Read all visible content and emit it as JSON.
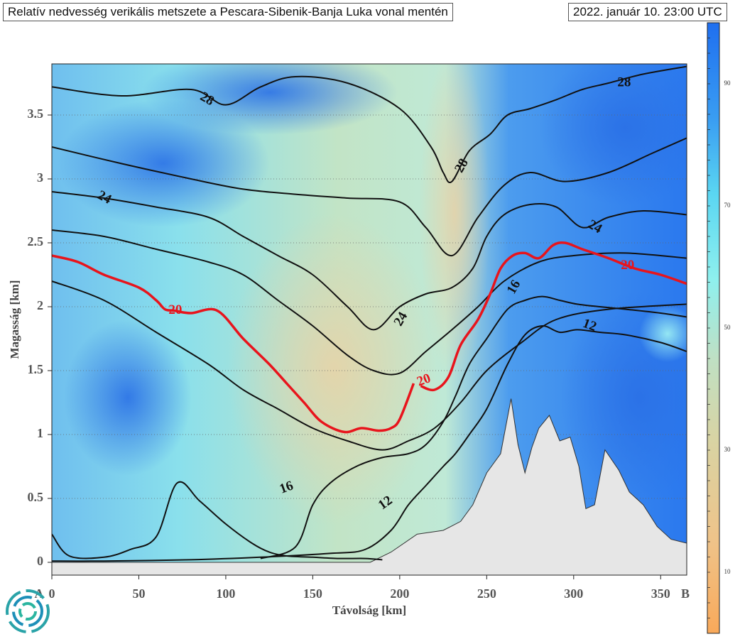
{
  "header": {
    "title": "Relatív nedvesség verikális metszete a Pescara-Sibenik-Banja Luka vonal mentén",
    "timestamp": "2022. január 10. 23:00 UTC"
  },
  "colors": {
    "humid_high": "#1f6ff0",
    "humid_mid": "#9fe8f0",
    "dry": "#f4a860",
    "terrain": "#e6e6e6",
    "isotherm": "#111111",
    "isotherm_highlight": "#e8141c"
  },
  "logo": {
    "icon": "swirl-logo-icon"
  },
  "chart_data": {
    "type": "heatmap",
    "title": "Relatív nedvesség verikális metszete a Pescara-Sibenik-Banja Luka vonal mentén",
    "xlabel": "Távolság [km]",
    "ylabel": "Magasság [km]",
    "xlim": [
      0,
      365
    ],
    "ylim": [
      -0.1,
      3.9
    ],
    "x_ticks": [
      0,
      50,
      100,
      150,
      200,
      250,
      300,
      350
    ],
    "y_ticks": [
      0,
      0.5,
      1,
      1.5,
      2,
      2.5,
      3,
      3.5
    ],
    "endpoints": {
      "start": "A",
      "end": "B"
    },
    "grid": "horizontal dotted",
    "colorbar": {
      "label_ticks": [
        10,
        30,
        50,
        70,
        90
      ],
      "range": [
        0,
        100
      ]
    },
    "terrain": {
      "x": [
        0,
        183,
        186,
        195,
        210,
        225,
        235,
        242,
        250,
        258,
        264,
        268,
        272,
        276,
        280,
        286,
        292,
        298,
        303,
        307,
        312,
        318,
        322,
        326,
        332,
        340,
        348,
        356,
        365
      ],
      "y": [
        0,
        0,
        0.02,
        0.08,
        0.22,
        0.25,
        0.32,
        0.45,
        0.7,
        0.85,
        1.28,
        0.92,
        0.7,
        0.9,
        1.05,
        1.15,
        0.95,
        0.98,
        0.75,
        0.42,
        0.45,
        0.88,
        0.8,
        0.72,
        0.55,
        0.45,
        0.28,
        0.18,
        0.15
      ]
    },
    "series": [
      {
        "name": "12",
        "x": [
          0,
          30,
          80,
          120,
          160,
          180,
          195,
          205,
          215,
          225,
          232,
          240,
          250,
          262,
          272,
          282,
          292,
          302,
          315,
          330,
          350,
          365
        ],
        "y": [
          0.01,
          0.01,
          0.02,
          0.04,
          0.07,
          0.1,
          0.25,
          0.45,
          0.6,
          0.75,
          0.85,
          1.0,
          1.2,
          1.55,
          1.78,
          1.85,
          1.8,
          1.82,
          1.8,
          1.78,
          1.72,
          1.65
        ]
      },
      {
        "name": "16",
        "x": [
          120,
          140,
          150,
          160,
          175,
          190,
          205,
          215,
          225,
          232,
          240,
          250,
          262,
          272,
          282,
          292,
          302,
          315,
          330,
          350,
          365
        ],
        "y": [
          0.03,
          0.12,
          0.45,
          0.62,
          0.75,
          0.82,
          0.85,
          0.92,
          1.1,
          1.3,
          1.55,
          1.75,
          1.98,
          2.05,
          2.08,
          2.05,
          2.02,
          2.0,
          1.98,
          1.95,
          1.92
        ]
      },
      {
        "name": "20",
        "x": [
          0,
          15,
          30,
          50,
          60,
          65,
          70,
          80,
          95,
          110,
          125,
          135,
          145,
          155,
          168,
          178,
          188,
          195,
          200,
          208
        ],
        "y": [
          2.4,
          2.35,
          2.25,
          2.15,
          2.05,
          1.98,
          1.97,
          1.95,
          1.97,
          1.75,
          1.55,
          1.4,
          1.25,
          1.1,
          1.02,
          1.05,
          1.03,
          1.05,
          1.12,
          1.4
        ]
      },
      {
        "name": "20",
        "x": [
          212,
          220,
          228,
          235,
          245,
          252,
          258,
          265,
          272,
          280,
          288,
          295,
          305,
          320,
          335,
          350,
          365
        ],
        "y": [
          1.38,
          1.35,
          1.45,
          1.7,
          1.9,
          2.1,
          2.3,
          2.4,
          2.42,
          2.38,
          2.48,
          2.5,
          2.45,
          2.38,
          2.3,
          2.25,
          2.18
        ]
      },
      {
        "name": "24",
        "x": [
          0,
          30,
          60,
          90,
          110,
          130,
          150,
          170,
          185,
          200,
          215,
          230,
          242,
          250,
          260,
          275,
          290,
          305,
          320,
          340,
          365
        ],
        "y": [
          2.9,
          2.85,
          2.78,
          2.7,
          2.55,
          2.4,
          2.25,
          2.0,
          1.82,
          2.0,
          2.1,
          2.15,
          2.3,
          2.55,
          2.72,
          2.8,
          2.78,
          2.62,
          2.7,
          2.75,
          2.72
        ]
      },
      {
        "name": "28",
        "x": [
          0,
          40,
          80,
          100,
          120,
          140,
          170,
          200,
          218,
          225,
          230,
          240,
          252,
          262,
          275,
          290,
          305,
          320,
          340,
          365
        ],
        "y": [
          3.72,
          3.65,
          3.7,
          3.58,
          3.72,
          3.8,
          3.75,
          3.55,
          3.25,
          3.05,
          2.98,
          3.22,
          3.35,
          3.5,
          3.55,
          3.62,
          3.7,
          3.75,
          3.82,
          3.88
        ]
      }
    ],
    "extra_lines": [
      {
        "x": [
          0,
          40,
          80,
          110,
          140,
          170,
          200,
          215,
          230,
          245,
          260,
          275,
          295,
          320,
          345,
          365
        ],
        "y": [
          3.25,
          3.12,
          3.0,
          2.92,
          2.88,
          2.85,
          2.82,
          2.62,
          2.4,
          2.7,
          2.95,
          3.05,
          2.98,
          3.05,
          3.2,
          3.32
        ]
      },
      {
        "x": [
          0,
          30,
          60,
          90,
          110,
          130,
          150,
          170,
          185,
          200,
          215,
          230,
          245,
          260,
          280,
          300,
          330,
          365
        ],
        "y": [
          2.6,
          2.55,
          2.45,
          2.35,
          2.25,
          2.05,
          1.85,
          1.62,
          1.5,
          1.48,
          1.65,
          1.82,
          2.0,
          2.2,
          2.35,
          2.4,
          2.42,
          2.38
        ]
      },
      {
        "x": [
          0,
          30,
          60,
          90,
          110,
          130,
          150,
          170,
          190,
          205,
          220,
          235,
          250,
          270,
          290,
          320,
          365
        ],
        "y": [
          2.2,
          2.05,
          1.8,
          1.55,
          1.35,
          1.2,
          1.05,
          0.95,
          0.88,
          0.95,
          1.05,
          1.25,
          1.5,
          1.72,
          1.9,
          1.98,
          2.02
        ]
      },
      {
        "x": [
          0,
          10,
          30,
          45,
          60,
          72,
          85,
          100,
          115,
          125,
          135,
          150,
          165,
          180,
          190
        ],
        "y": [
          0.22,
          0.05,
          0.04,
          0.1,
          0.2,
          0.62,
          0.48,
          0.3,
          0.15,
          0.08,
          0.05,
          0.04,
          0.03,
          0.03,
          0.02
        ]
      }
    ],
    "contour_labels": [
      {
        "text": "28",
        "x": 89,
        "y": 3.62,
        "angle": 30
      },
      {
        "text": "28",
        "x": 236,
        "y": 3.1,
        "angle": -60
      },
      {
        "text": "28",
        "x": 329,
        "y": 3.75,
        "angle": 0
      },
      {
        "text": "24",
        "x": 30,
        "y": 2.85,
        "angle": 28
      },
      {
        "text": "24",
        "x": 201,
        "y": 1.9,
        "angle": -60
      },
      {
        "text": "24",
        "x": 312,
        "y": 2.62,
        "angle": 30
      },
      {
        "text": "20",
        "x": 71,
        "y": 1.97,
        "angle": 0
      },
      {
        "text": "20",
        "x": 214,
        "y": 1.42,
        "angle": -20
      },
      {
        "text": "20",
        "x": 331,
        "y": 2.32,
        "angle": 0
      },
      {
        "text": "16",
        "x": 135,
        "y": 0.58,
        "angle": -20
      },
      {
        "text": "16",
        "x": 266,
        "y": 2.15,
        "angle": -60
      },
      {
        "text": "12",
        "x": 192,
        "y": 0.46,
        "angle": -35
      },
      {
        "text": "12",
        "x": 309,
        "y": 1.85,
        "angle": 20
      }
    ]
  }
}
